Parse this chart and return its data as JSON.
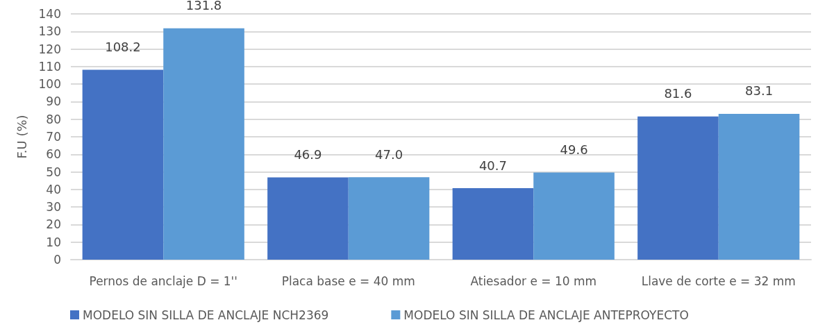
{
  "chart_data": {
    "type": "bar",
    "ylabel": "F.U (%)",
    "categories": [
      "Pernos de anclaje D = 1''",
      "Placa base e = 40 mm",
      "Atiesador e = 10 mm",
      "Llave de corte e = 32 mm"
    ],
    "series": [
      {
        "name": "MODELO SIN SILLA DE ANCLAJE NCH2369",
        "color": "#4472c4",
        "values": [
          108.2,
          46.9,
          40.7,
          81.6
        ],
        "value_labels": [
          "108.2",
          "46.9",
          "40.7",
          "81.6"
        ]
      },
      {
        "name": "MODELO SIN SILLA DE ANCLAJE ANTEPROYECTO",
        "color": "#5b9bd5",
        "values": [
          131.8,
          47.0,
          49.6,
          83.1
        ],
        "value_labels": [
          "131.8",
          "47.0",
          "49.6",
          "83.1"
        ]
      }
    ],
    "ylim": [
      0,
      140
    ],
    "yticks": [
      0,
      10,
      20,
      30,
      40,
      50,
      60,
      70,
      80,
      90,
      100,
      110,
      120,
      130,
      140
    ],
    "grid": "y",
    "legend": "bottom left"
  }
}
